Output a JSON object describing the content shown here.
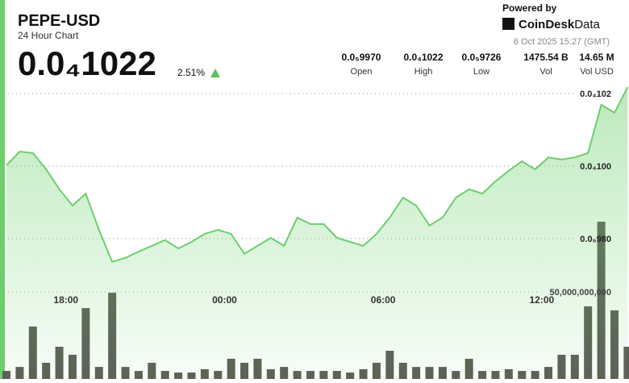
{
  "header": {
    "title": "PEPE-USD",
    "subtitle": "24 Hour Chart",
    "price": "0.0₄1022",
    "change": "2.51%",
    "powered": "Powered by",
    "brand": "CoinDesk",
    "brand_suffix": "Data",
    "timestamp": "6 Oct 2025 15:27 (GMT)",
    "stats": [
      {
        "value": "0.0₅9970",
        "label": "Open"
      },
      {
        "value": "0.0₄1022",
        "label": "High"
      },
      {
        "value": "0.0₅9726",
        "label": "Low"
      },
      {
        "value": "1475.54 B",
        "label": "Vol"
      },
      {
        "value": "14.65 M",
        "label": "Vol USD"
      }
    ]
  },
  "chart_data": {
    "type": "line",
    "x": [
      15.75,
      16.25,
      16.75,
      17.25,
      17.75,
      18.25,
      18.75,
      19.25,
      19.75,
      20.25,
      20.75,
      21.25,
      21.75,
      22.25,
      22.75,
      23.25,
      23.75,
      24.25,
      24.75,
      25.25,
      25.75,
      26.25,
      26.75,
      27.25,
      27.75,
      28.25,
      28.75,
      29.25,
      29.75,
      30.25,
      30.75,
      31.25,
      31.75,
      32.25,
      32.75,
      33.25,
      33.75,
      34.25,
      34.75,
      35.25,
      35.75,
      36.25,
      36.75,
      37.25,
      37.75,
      38.25,
      38.75,
      39.25
    ],
    "xlim": [
      15.75,
      39.3
    ],
    "xticks": [
      {
        "value": 18,
        "label": "18:00"
      },
      {
        "value": 24,
        "label": "00:00"
      },
      {
        "value": 30,
        "label": "06:00"
      },
      {
        "value": 36,
        "label": "12:00"
      }
    ],
    "ylim": [
      9.413e-06,
      1.024e-05
    ],
    "yticks": [
      {
        "value": 9.8e-06,
        "label": "0.0₅980"
      },
      {
        "value": 1e-05,
        "label": "0.0₄100"
      },
      {
        "value": 1.02e-05,
        "label": "0.0₄102"
      }
    ],
    "y2lim": [
      0,
      172200000000
    ],
    "y2ticks": [
      {
        "value": 50000000000,
        "label": "50,000,000,000"
      }
    ],
    "grid": true,
    "series": [
      {
        "name": "Price",
        "color": "#6ccf6c",
        "values": [
          1.0002e-05,
          1.004e-05,
          1.0036e-05,
          9.991e-06,
          9.936e-06,
          9.891e-06,
          9.924e-06,
          9.824e-06,
          9.736e-06,
          9.747e-06,
          9.764e-06,
          9.78e-06,
          9.796e-06,
          9.773e-06,
          9.791e-06,
          9.813e-06,
          9.824e-06,
          9.813e-06,
          9.758e-06,
          9.78e-06,
          9.802e-06,
          9.78e-06,
          9.858e-06,
          9.84e-06,
          9.84e-06,
          9.802e-06,
          9.791e-06,
          9.78e-06,
          9.813e-06,
          9.858e-06,
          9.913e-06,
          9.891e-06,
          9.836e-06,
          9.858e-06,
          9.913e-06,
          9.936e-06,
          9.924e-06,
          9.958e-06,
          9.987e-06,
          1.0013e-05,
          9.991e-06,
          1.0024e-05,
          1.0018e-05,
          1.0024e-05,
          1.0036e-05,
          1.0169e-05,
          1.0147e-05,
          1.0218e-05
        ]
      },
      {
        "name": "Volume",
        "type": "bar",
        "axis": "y2",
        "color": "#5b5d55",
        "values": [
          4600000000,
          6900000000,
          30100000000,
          9300000000,
          18500000000,
          13900000000,
          40700000000,
          6900000000,
          49500000000,
          6900000000,
          4600000000,
          9300000000,
          4600000000,
          3700000000,
          3700000000,
          5600000000,
          4600000000,
          11600000000,
          9300000000,
          11600000000,
          5600000000,
          6900000000,
          4600000000,
          4600000000,
          4600000000,
          4600000000,
          3700000000,
          5600000000,
          9300000000,
          16200000000,
          9300000000,
          6900000000,
          6900000000,
          6900000000,
          4600000000,
          11600000000,
          4600000000,
          4600000000,
          5600000000,
          4600000000,
          4600000000,
          6900000000,
          13900000000,
          13900000000,
          41700000000,
          90300000000,
          39400000000,
          18500000000
        ]
      }
    ]
  }
}
